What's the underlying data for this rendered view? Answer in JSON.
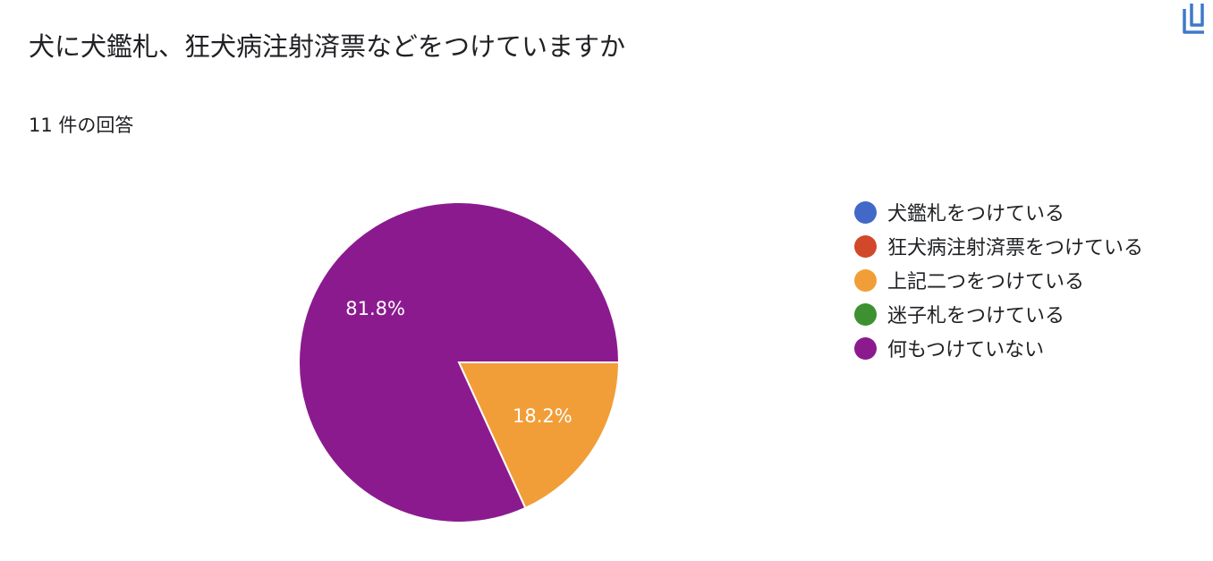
{
  "header": {
    "title": "犬に犬鑑札、狂犬病注射済票などをつけていますか",
    "response_count": "11 件の回答"
  },
  "toolbar": {
    "copy_icon": "copy-icon"
  },
  "chart_data": {
    "type": "pie",
    "categories": [
      "犬鑑札をつけている",
      "狂犬病注射済票をつけている",
      "上記二つをつけている",
      "迷子札をつけている",
      "何もつけていない"
    ],
    "values": [
      0,
      0,
      2,
      0,
      9
    ],
    "data_labels": [
      "",
      "",
      "18.2%",
      "",
      "81.8%"
    ],
    "colors": [
      "#4268c8",
      "#d1492a",
      "#f29e38",
      "#3d9131",
      "#8b1a8f"
    ],
    "start_angle_deg": 90,
    "legend": "right"
  }
}
